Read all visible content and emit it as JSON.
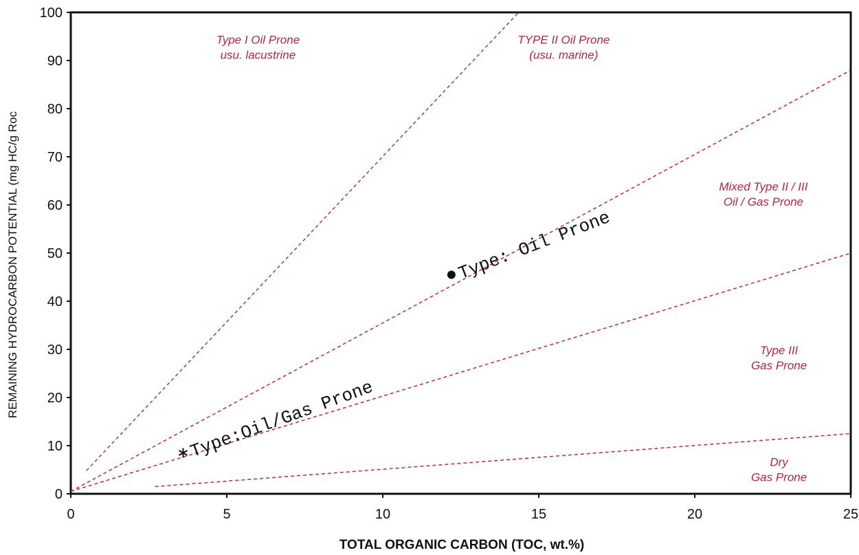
{
  "chart_data": {
    "type": "line",
    "title": "",
    "xlabel": "TOTAL ORGANIC CARBON (TOC, wt.%)",
    "ylabel": "REMAINING HYDROCARBON POTENTIAL (mg HC/g Roc",
    "xlim": [
      0,
      25
    ],
    "ylim": [
      0,
      100
    ],
    "xticks": [
      0,
      5,
      10,
      15,
      20,
      25
    ],
    "yticks": [
      0,
      10,
      20,
      30,
      40,
      50,
      60,
      70,
      80,
      90,
      100
    ],
    "grid": false,
    "boundary_lines": [
      {
        "x": [
          0.5,
          14.5
        ],
        "y": [
          4.8,
          101
        ],
        "color": "#a03a52"
      },
      {
        "x": [
          0.0,
          25.0
        ],
        "y": [
          0.5,
          88.0
        ],
        "color": "#c02838"
      },
      {
        "x": [
          0.0,
          25.0
        ],
        "y": [
          0.5,
          50.0
        ],
        "color": "#c02838"
      },
      {
        "x": [
          2.7,
          25.0
        ],
        "y": [
          1.5,
          12.5
        ],
        "color": "#c02838"
      }
    ],
    "region_labels": [
      {
        "lines": [
          "Type I Oil Prone",
          "usu. lacustrine"
        ],
        "x": 6.0,
        "y": 93.5
      },
      {
        "lines": [
          "TYPE II Oil Prone",
          "(usu. marine)"
        ],
        "x": 15.8,
        "y": 93.5
      },
      {
        "lines": [
          "Mixed Type II / III",
          "Oil / Gas Prone"
        ],
        "x": 22.2,
        "y": 63.0
      },
      {
        "lines": [
          "Type III",
          "Gas Prone"
        ],
        "x": 22.7,
        "y": 29.0
      },
      {
        "lines": [
          "Dry",
          "Gas Prone"
        ],
        "x": 22.7,
        "y": 5.8
      }
    ],
    "samples": [
      {
        "x": 12.2,
        "y": 45.5,
        "marker": "dot",
        "label": "Type: Oil Prone",
        "label_angle": -21
      },
      {
        "x": 3.6,
        "y": 8.5,
        "marker": "asterisk",
        "label": "Type:Oil/Gas Prone",
        "label_angle": -20
      }
    ]
  }
}
